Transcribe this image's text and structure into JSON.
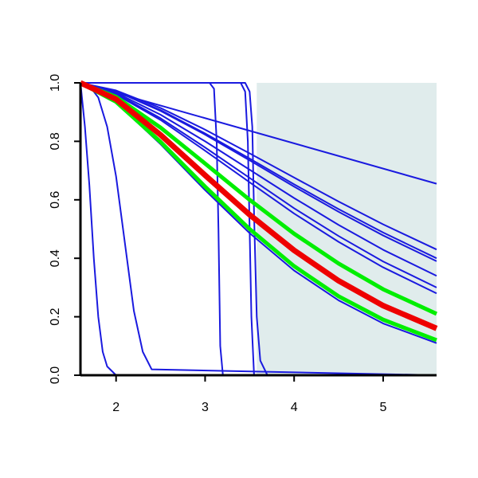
{
  "chart_data": {
    "type": "line",
    "xlim": [
      1.6,
      5.6
    ],
    "xticks": [
      2,
      3,
      4,
      5
    ],
    "ylim": [
      0,
      1
    ],
    "yticks": [
      {
        "value": 0,
        "label": "0.0"
      },
      0.2,
      0.4,
      0.6,
      0.8,
      {
        "value": 1,
        "label": "1.0"
      }
    ],
    "shaded_region": {
      "x": [
        3.58,
        5.6
      ],
      "color": "#e0ecec"
    },
    "series": [
      {
        "color": "#1a1adf",
        "width": 2,
        "x": [
          1.6,
          5.6
        ],
        "values": [
          1,
          0.655
        ]
      },
      {
        "color": "#1a1adf",
        "width": 2,
        "x": [
          1.6,
          2.0,
          2.5,
          3.0,
          3.5,
          4.0,
          4.5,
          5.0,
          5.6
        ],
        "values": [
          1,
          0.974,
          0.914,
          0.84,
          0.759,
          0.676,
          0.594,
          0.516,
          0.43
        ]
      },
      {
        "color": "#1a1adf",
        "width": 2,
        "x": [
          1.6,
          2.0,
          2.5,
          3.0,
          3.5,
          4.0,
          4.5,
          5.0,
          5.6
        ],
        "values": [
          1,
          0.971,
          0.907,
          0.827,
          0.741,
          0.653,
          0.568,
          0.488,
          0.4
        ]
      },
      {
        "color": "#1a1adf",
        "width": 2,
        "x": [
          1.6,
          2.0,
          2.5,
          3.0,
          3.5,
          4.0,
          4.5,
          5.0,
          5.6
        ],
        "values": [
          1,
          0.971,
          0.904,
          0.823,
          0.735,
          0.645,
          0.559,
          0.478,
          0.39
        ]
      },
      {
        "color": "#1a1adf",
        "width": 2,
        "x": [
          1.6,
          2.0,
          2.5,
          3.0,
          3.5,
          4.0,
          4.5,
          5.0,
          5.6
        ],
        "values": [
          1,
          0.966,
          0.891,
          0.8,
          0.703,
          0.606,
          0.514,
          0.429,
          0.34
        ]
      },
      {
        "color": "#1a1adf",
        "width": 2,
        "x": [
          1.6,
          2.0,
          2.5,
          3.0,
          3.5,
          4.0,
          4.5,
          5.0,
          5.6
        ],
        "values": [
          1,
          0.963,
          0.879,
          0.779,
          0.675,
          0.571,
          0.476,
          0.389,
          0.3
        ]
      },
      {
        "color": "#1a1adf",
        "width": 2,
        "x": [
          1.6,
          2.0,
          2.5,
          3.0,
          3.5,
          4.0,
          4.5,
          5.0,
          5.6
        ],
        "values": [
          1,
          0.96,
          0.873,
          0.768,
          0.66,
          0.553,
          0.456,
          0.369,
          0.28
        ]
      },
      {
        "color": "#1a1adf",
        "width": 2,
        "x": [
          1.6,
          2.0,
          2.5,
          3.0,
          3.5,
          4.0,
          4.5,
          5.0,
          5.6
        ],
        "values": [
          1,
          0.933,
          0.79,
          0.633,
          0.486,
          0.358,
          0.256,
          0.177,
          0.11
        ]
      },
      {
        "color": "#1a1adf",
        "width": 2,
        "x": [
          1.6,
          1.65,
          1.7,
          1.75,
          1.8,
          1.85,
          1.9,
          2.0,
          2.5,
          5.6
        ],
        "values": [
          1,
          0.85,
          0.65,
          0.4,
          0.2,
          0.08,
          0.03,
          0,
          0,
          0
        ]
      },
      {
        "color": "#1a1adf",
        "width": 2,
        "x": [
          1.6,
          1.7,
          1.8,
          1.9,
          2.0,
          2.1,
          2.2,
          2.3,
          2.4,
          5.6
        ],
        "values": [
          1,
          0.99,
          0.95,
          0.85,
          0.68,
          0.45,
          0.22,
          0.08,
          0.02,
          0
        ]
      },
      {
        "color": "#1a1adf",
        "width": 2,
        "x": [
          1.6,
          3.05,
          3.1,
          3.13,
          3.15,
          3.17,
          3.2,
          5.6
        ],
        "values": [
          1,
          1,
          0.98,
          0.8,
          0.5,
          0.1,
          0,
          0
        ]
      },
      {
        "color": "#1a1adf",
        "width": 2,
        "x": [
          1.6,
          3.4,
          3.45,
          3.48,
          3.5,
          3.52,
          3.55,
          5.6
        ],
        "values": [
          1,
          1,
          0.97,
          0.8,
          0.5,
          0.2,
          0,
          0
        ]
      },
      {
        "color": "#1a1adf",
        "width": 2,
        "x": [
          1.6,
          3.45,
          3.5,
          3.53,
          3.55,
          3.58,
          3.62,
          3.7,
          5.6
        ],
        "values": [
          1,
          1,
          0.97,
          0.85,
          0.55,
          0.2,
          0.05,
          0,
          0
        ]
      },
      {
        "color": "#00ee00",
        "width": 5,
        "x": [
          1.6,
          2.0,
          2.5,
          3.0,
          3.5,
          4.0,
          4.5,
          5.0,
          5.6
        ],
        "values": [
          1,
          0.952,
          0.847,
          0.724,
          0.6,
          0.484,
          0.382,
          0.294,
          0.21
        ]
      },
      {
        "color": "#00ee00",
        "width": 5,
        "x": [
          1.6,
          2.0,
          2.5,
          3.0,
          3.5,
          4.0,
          4.5,
          5.0,
          5.6
        ],
        "values": [
          1,
          0.935,
          0.798,
          0.645,
          0.5,
          0.373,
          0.27,
          0.19,
          0.12
        ]
      },
      {
        "color": "#ee0000",
        "width": 7,
        "x": [
          1.6,
          2.0,
          2.5,
          3.0,
          3.5,
          4.0,
          4.5,
          5.0,
          5.6
        ],
        "values": [
          1,
          0.944,
          0.822,
          0.684,
          0.549,
          0.427,
          0.323,
          0.238,
          0.16
        ]
      }
    ]
  }
}
